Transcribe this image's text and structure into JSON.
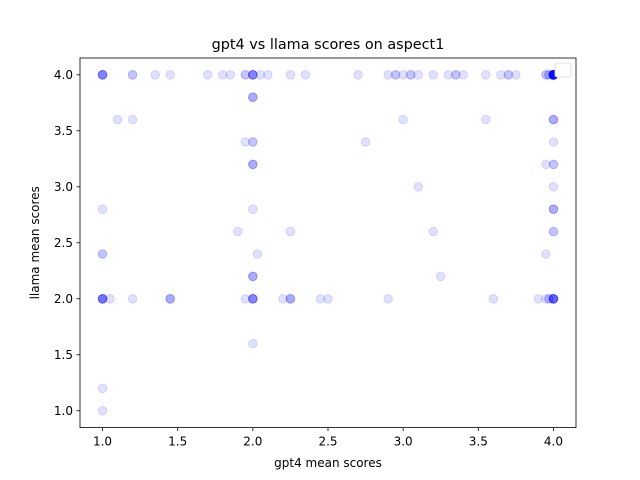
{
  "chart_data": {
    "type": "scatter",
    "title": "gpt4 vs llama scores on aspect1",
    "xlabel": "gpt4 mean scores",
    "ylabel": "llama mean scores",
    "xlim": [
      0.85,
      4.15
    ],
    "ylim": [
      0.85,
      4.15
    ],
    "xticks": [
      1.0,
      1.5,
      2.0,
      2.5,
      3.0,
      3.5,
      4.0
    ],
    "xtick_labels": [
      "1.0",
      "1.5",
      "2.0",
      "2.5",
      "3.0",
      "3.5",
      "4.0"
    ],
    "yticks": [
      1.0,
      1.5,
      2.0,
      2.5,
      3.0,
      3.5,
      4.0
    ],
    "ytick_labels": [
      "1.0",
      "1.5",
      "2.0",
      "2.5",
      "3.0",
      "3.5",
      "4.0"
    ],
    "grid": false,
    "legend": "top-right (empty)",
    "marker_color": "#0000ff",
    "marker_alpha": 0.12,
    "series": [
      {
        "points": [
          [
            1.0,
            4.0
          ],
          [
            1.0,
            4.0
          ],
          [
            1.0,
            4.0
          ],
          [
            1.0,
            4.0
          ],
          [
            1.0,
            4.0
          ],
          [
            1.2,
            4.0
          ],
          [
            1.2,
            4.0
          ],
          [
            1.35,
            4.0
          ],
          [
            1.45,
            4.0
          ],
          [
            1.7,
            4.0
          ],
          [
            1.8,
            4.0
          ],
          [
            1.85,
            4.0
          ],
          [
            1.95,
            4.0
          ],
          [
            1.95,
            4.0
          ],
          [
            2.0,
            4.0
          ],
          [
            2.0,
            4.0
          ],
          [
            2.0,
            4.0
          ],
          [
            2.0,
            4.0
          ],
          [
            2.0,
            4.0
          ],
          [
            2.05,
            4.0
          ],
          [
            2.1,
            4.0
          ],
          [
            2.25,
            4.0
          ],
          [
            2.35,
            4.0
          ],
          [
            2.7,
            4.0
          ],
          [
            2.9,
            4.0
          ],
          [
            2.95,
            4.0
          ],
          [
            2.95,
            4.0
          ],
          [
            3.0,
            4.0
          ],
          [
            3.05,
            4.0
          ],
          [
            3.05,
            4.0
          ],
          [
            3.1,
            4.0
          ],
          [
            3.2,
            4.0
          ],
          [
            3.3,
            4.0
          ],
          [
            3.35,
            4.0
          ],
          [
            3.35,
            4.0
          ],
          [
            3.4,
            4.0
          ],
          [
            3.55,
            4.0
          ],
          [
            3.65,
            4.0
          ],
          [
            3.7,
            4.0
          ],
          [
            3.7,
            4.0
          ],
          [
            3.75,
            4.0
          ],
          [
            3.95,
            4.0
          ],
          [
            3.95,
            4.0
          ],
          [
            3.97,
            4.0
          ],
          [
            3.97,
            4.0
          ],
          [
            4.0,
            4.0
          ],
          [
            4.0,
            4.0
          ],
          [
            4.0,
            4.0
          ],
          [
            4.0,
            4.0
          ],
          [
            4.0,
            4.0
          ],
          [
            4.0,
            4.0
          ],
          [
            4.0,
            4.0
          ],
          [
            4.0,
            4.0
          ],
          [
            4.0,
            4.0
          ],
          [
            4.0,
            4.0
          ],
          [
            4.0,
            4.0
          ],
          [
            4.0,
            4.0
          ],
          [
            4.0,
            4.0
          ],
          [
            4.0,
            4.0
          ],
          [
            4.0,
            4.0
          ],
          [
            4.0,
            4.0
          ],
          [
            4.0,
            4.0
          ],
          [
            4.0,
            4.0
          ],
          [
            4.0,
            4.0
          ],
          [
            4.0,
            4.0
          ],
          [
            2.0,
            3.8
          ],
          [
            2.0,
            3.8
          ],
          [
            2.0,
            3.8
          ],
          [
            1.1,
            3.6
          ],
          [
            1.2,
            3.6
          ],
          [
            3.0,
            3.6
          ],
          [
            3.55,
            3.6
          ],
          [
            4.0,
            3.6
          ],
          [
            4.0,
            3.6
          ],
          [
            4.0,
            3.6
          ],
          [
            1.95,
            3.4
          ],
          [
            2.0,
            3.4
          ],
          [
            2.0,
            3.4
          ],
          [
            2.75,
            3.4
          ],
          [
            4.0,
            3.4
          ],
          [
            2.0,
            3.2
          ],
          [
            2.0,
            3.2
          ],
          [
            2.0,
            3.2
          ],
          [
            3.95,
            3.2
          ],
          [
            4.0,
            3.2
          ],
          [
            4.0,
            3.2
          ],
          [
            3.1,
            3.0
          ],
          [
            4.0,
            3.0
          ],
          [
            1.0,
            2.8
          ],
          [
            2.0,
            2.8
          ],
          [
            4.0,
            2.8
          ],
          [
            4.0,
            2.8
          ],
          [
            4.0,
            2.8
          ],
          [
            1.9,
            2.6
          ],
          [
            2.25,
            2.6
          ],
          [
            3.2,
            2.6
          ],
          [
            4.0,
            2.6
          ],
          [
            4.0,
            2.6
          ],
          [
            1.0,
            2.4
          ],
          [
            1.0,
            2.4
          ],
          [
            2.03,
            2.4
          ],
          [
            3.95,
            2.4
          ],
          [
            2.0,
            2.2
          ],
          [
            2.0,
            2.2
          ],
          [
            2.0,
            2.2
          ],
          [
            3.25,
            2.2
          ],
          [
            1.0,
            2.0
          ],
          [
            1.0,
            2.0
          ],
          [
            1.0,
            2.0
          ],
          [
            1.0,
            2.0
          ],
          [
            1.0,
            2.0
          ],
          [
            1.0,
            2.0
          ],
          [
            1.05,
            2.0
          ],
          [
            1.2,
            2.0
          ],
          [
            1.45,
            2.0
          ],
          [
            1.45,
            2.0
          ],
          [
            1.45,
            2.0
          ],
          [
            1.95,
            2.0
          ],
          [
            2.0,
            2.0
          ],
          [
            2.0,
            2.0
          ],
          [
            2.0,
            2.0
          ],
          [
            2.0,
            2.0
          ],
          [
            2.0,
            2.0
          ],
          [
            2.2,
            2.0
          ],
          [
            2.25,
            2.0
          ],
          [
            2.25,
            2.0
          ],
          [
            2.25,
            2.0
          ],
          [
            2.45,
            2.0
          ],
          [
            2.5,
            2.0
          ],
          [
            2.9,
            2.0
          ],
          [
            3.6,
            2.0
          ],
          [
            3.9,
            2.0
          ],
          [
            3.95,
            2.0
          ],
          [
            3.97,
            2.0
          ],
          [
            3.97,
            2.0
          ],
          [
            4.0,
            2.0
          ],
          [
            4.0,
            2.0
          ],
          [
            4.0,
            2.0
          ],
          [
            4.0,
            2.0
          ],
          [
            4.0,
            2.0
          ],
          [
            4.0,
            2.0
          ],
          [
            4.0,
            2.0
          ],
          [
            2.0,
            1.6
          ],
          [
            1.0,
            1.2
          ],
          [
            1.0,
            1.0
          ]
        ]
      }
    ]
  }
}
